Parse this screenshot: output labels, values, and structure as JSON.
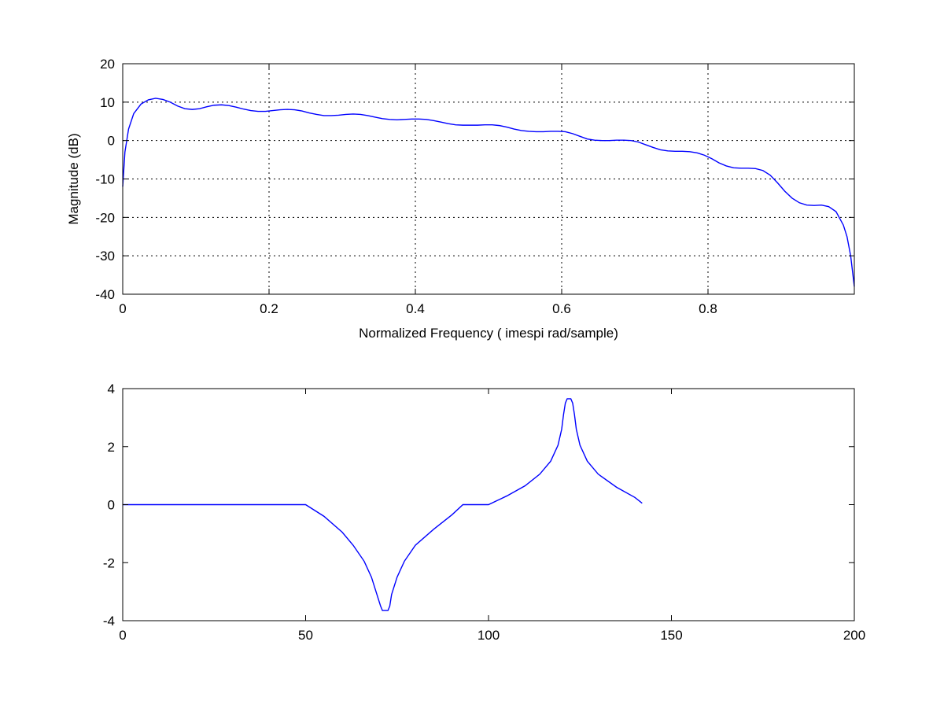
{
  "line_color": "#0000ff",
  "chart_data": [
    {
      "type": "line",
      "title": "",
      "xlabel": "Normalized Frequency ( imespi rad/sample)",
      "ylabel": "Magnitude (dB)",
      "xlim": [
        0,
        1
      ],
      "ylim": [
        -40,
        20
      ],
      "grid": true,
      "xticks": [
        0,
        0.2,
        0.4,
        0.6,
        0.8
      ],
      "xtick_labels": [
        "0",
        "0.2",
        "0.4",
        "0.6",
        "0.8"
      ],
      "yticks": [
        20,
        10,
        0,
        -10,
        -20,
        -30,
        -40
      ],
      "ytick_labels": [
        "20",
        "10",
        "0",
        "-10",
        "-20",
        "-30",
        "-40"
      ],
      "series": [
        {
          "x": [
            0,
            0.003,
            0.008,
            0.015,
            0.025,
            0.035,
            0.045,
            0.055,
            0.065,
            0.075,
            0.085,
            0.095,
            0.105,
            0.115,
            0.125,
            0.135,
            0.145,
            0.155,
            0.165,
            0.175,
            0.185,
            0.195,
            0.205,
            0.215,
            0.225,
            0.235,
            0.245,
            0.255,
            0.265,
            0.275,
            0.285,
            0.295,
            0.305,
            0.315,
            0.325,
            0.335,
            0.345,
            0.355,
            0.365,
            0.375,
            0.385,
            0.395,
            0.405,
            0.415,
            0.425,
            0.435,
            0.445,
            0.455,
            0.465,
            0.475,
            0.485,
            0.495,
            0.505,
            0.515,
            0.525,
            0.535,
            0.545,
            0.555,
            0.565,
            0.575,
            0.585,
            0.595,
            0.605,
            0.615,
            0.625,
            0.635,
            0.645,
            0.655,
            0.665,
            0.675,
            0.685,
            0.695,
            0.705,
            0.715,
            0.725,
            0.735,
            0.745,
            0.755,
            0.765,
            0.775,
            0.785,
            0.795,
            0.805,
            0.815,
            0.825,
            0.835,
            0.845,
            0.855,
            0.865,
            0.875,
            0.885,
            0.895,
            0.905,
            0.915,
            0.925,
            0.935,
            0.945,
            0.955,
            0.965,
            0.975,
            0.985,
            0.99,
            0.995,
            1.0
          ],
          "y": [
            -12,
            -3,
            3,
            7,
            9.5,
            10.6,
            11,
            10.7,
            10,
            9,
            8.3,
            8.1,
            8.3,
            8.8,
            9.2,
            9.3,
            9.1,
            8.7,
            8.2,
            7.8,
            7.6,
            7.6,
            7.8,
            8.0,
            8.1,
            8.0,
            7.7,
            7.2,
            6.8,
            6.5,
            6.5,
            6.6,
            6.8,
            6.9,
            6.8,
            6.5,
            6.1,
            5.7,
            5.5,
            5.4,
            5.5,
            5.6,
            5.6,
            5.5,
            5.2,
            4.8,
            4.4,
            4.1,
            4.0,
            4.0,
            4.0,
            4.1,
            4.1,
            3.9,
            3.5,
            3.0,
            2.6,
            2.4,
            2.3,
            2.3,
            2.4,
            2.4,
            2.3,
            1.8,
            1.1,
            0.4,
            0.1,
            0.0,
            0.0,
            0.1,
            0.1,
            0.0,
            -0.4,
            -1.1,
            -1.8,
            -2.4,
            -2.7,
            -2.8,
            -2.8,
            -2.9,
            -3.2,
            -3.8,
            -4.7,
            -5.8,
            -6.6,
            -7.1,
            -7.2,
            -7.2,
            -7.3,
            -7.8,
            -9.0,
            -11.0,
            -13.2,
            -15.0,
            -16.2,
            -16.8,
            -16.9,
            -16.8,
            -17.2,
            -18.5,
            -22,
            -25,
            -30,
            -38
          ]
        }
      ]
    },
    {
      "type": "line",
      "title": "",
      "xlabel": "",
      "ylabel": "",
      "xlim": [
        0,
        200
      ],
      "ylim": [
        -4,
        4
      ],
      "grid": false,
      "xticks": [
        0,
        50,
        100,
        150,
        200
      ],
      "xtick_labels": [
        "0",
        "50",
        "100",
        "150",
        "200"
      ],
      "yticks": [
        4,
        2,
        0,
        -2,
        -4
      ],
      "ytick_labels": [
        "4",
        "2",
        "0",
        "-2",
        "-4"
      ],
      "series": [
        {
          "x": [
            0,
            50,
            55,
            60,
            63,
            66,
            68,
            69.5,
            70.5,
            71,
            71.5,
            72.5,
            73,
            73.5,
            75,
            77,
            80,
            85,
            90,
            93,
            100,
            105,
            110,
            114,
            117,
            119,
            120,
            120.5,
            121,
            121.5,
            122.5,
            123,
            123.5,
            124,
            125,
            127,
            130,
            135,
            140,
            142
          ],
          "y": [
            0,
            0,
            -0.4,
            -0.95,
            -1.4,
            -1.95,
            -2.5,
            -3.1,
            -3.5,
            -3.65,
            -3.65,
            -3.65,
            -3.5,
            -3.1,
            -2.5,
            -1.95,
            -1.4,
            -0.85,
            -0.35,
            0,
            0,
            0.3,
            0.65,
            1.05,
            1.5,
            2.05,
            2.6,
            3.1,
            3.5,
            3.65,
            3.65,
            3.5,
            3.1,
            2.6,
            2.05,
            1.5,
            1.05,
            0.6,
            0.25,
            0.05
          ]
        }
      ]
    }
  ]
}
